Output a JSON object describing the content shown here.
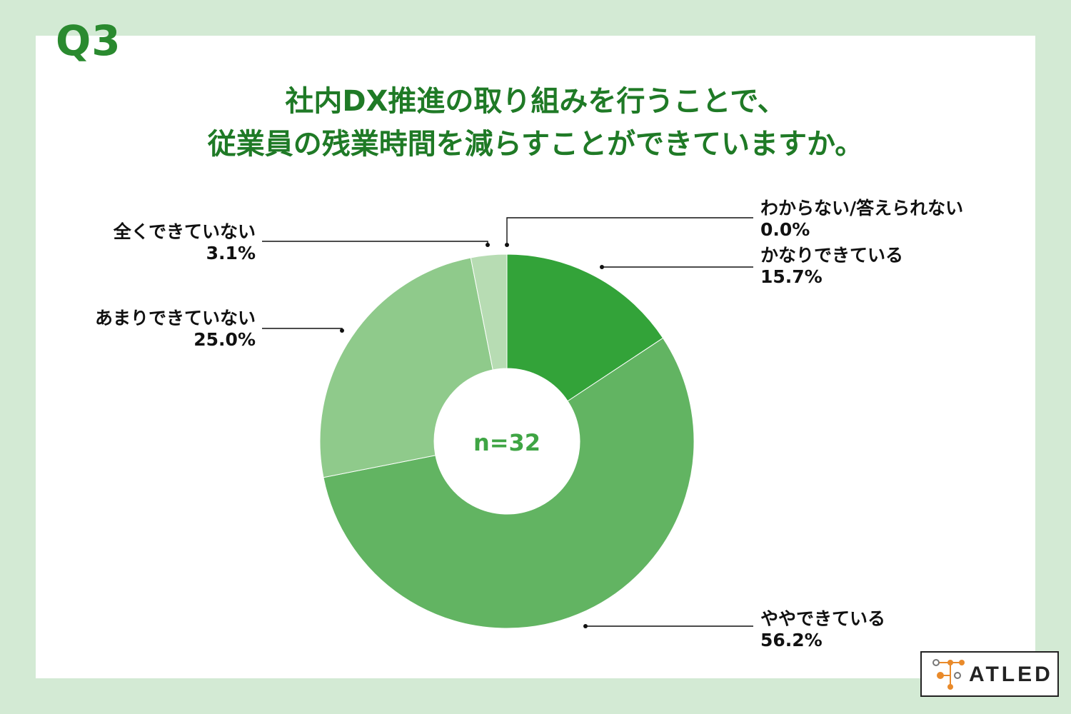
{
  "question_label": "Q3",
  "title_line1": "社内DX推進の取り組みを行うことで、",
  "title_line2": "従業員の残業時間を減らすことができていますか。",
  "center_label": "n=32",
  "logo_text": "ATLED",
  "colors": {
    "background": "#d3ead4",
    "title": "#1f7a26",
    "slice_dark": "#33a339",
    "slice_mid": "#62b462",
    "slice_light": "#8fca8b",
    "slice_lighter": "#b7dcb3"
  },
  "chart_data": {
    "type": "pie",
    "variant": "donut",
    "categories": [
      "かなりできている",
      "ややできている",
      "あまりできていない",
      "全くできていない",
      "わからない/答えられない"
    ],
    "values": [
      15.7,
      56.2,
      25.0,
      3.1,
      0.0
    ],
    "value_labels": [
      "15.7%",
      "56.2%",
      "25.0%",
      "3.1%",
      "0.0%"
    ],
    "colors": [
      "#33a339",
      "#62b462",
      "#8fca8b",
      "#b7dcb3",
      "#d6ecd3"
    ],
    "start": "top",
    "direction": "clockwise",
    "legend": "none"
  }
}
